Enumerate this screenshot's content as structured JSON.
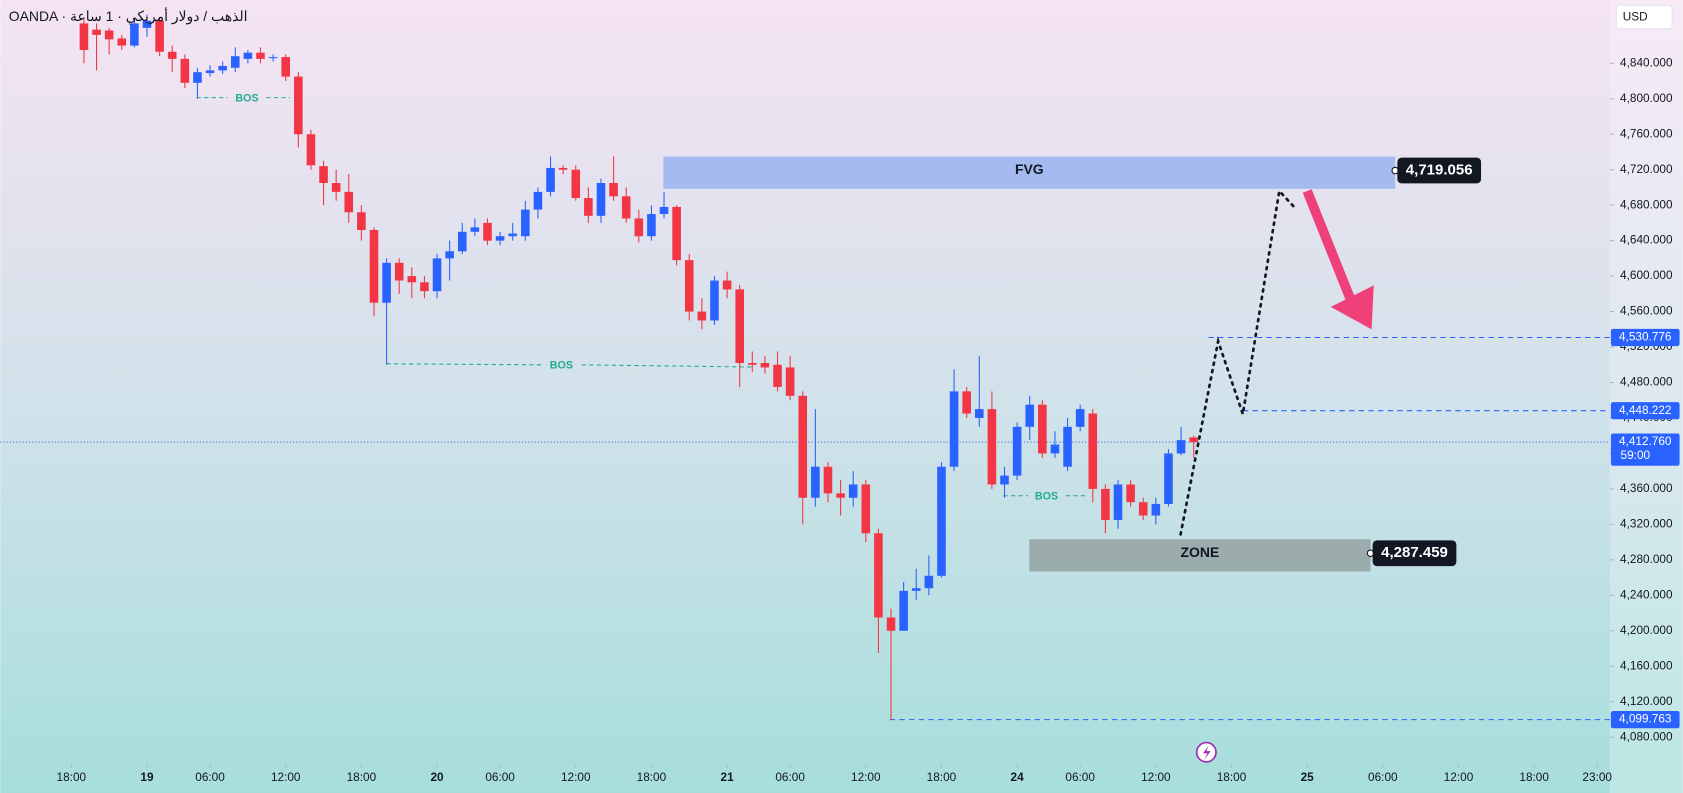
{
  "chart_data": {
    "type": "candlestick",
    "symbol": "OANDA · الذهب / دولار أمريكي · 1 ساعة",
    "currency": "USD",
    "up_color": "#2962ff",
    "down_color": "#f23645",
    "open": [
      4885,
      4878,
      4877,
      4868,
      4860,
      4880,
      4888,
      4853,
      4845,
      4818,
      4829,
      4832,
      4835,
      4845,
      4852,
      4846,
      4847,
      4825,
      4760,
      4724,
      4705,
      4695,
      4672,
      4652,
      4570,
      4615,
      4600,
      4593,
      4583,
      4620,
      4628,
      4650,
      4660,
      4640,
      4645,
      4645,
      4675,
      4695,
      4722,
      4720,
      4688,
      4668,
      4705,
      4690,
      4665,
      4645,
      4670,
      4678,
      4618,
      4560,
      4550,
      4595,
      4585,
      4502,
      4502,
      4500,
      4497,
      4465,
      4350,
      4385,
      4355,
      4350,
      4365,
      4310,
      4215,
      4200,
      4245,
      4248,
      4262,
      4385,
      4470,
      4440,
      4450,
      4365,
      4375,
      4430,
      4455,
      4400,
      4385,
      4430,
      4445,
      4360,
      4325,
      4365,
      4345,
      4330,
      4343,
      4400,
      4418
    ],
    "high": [
      4890,
      4885,
      4880,
      4872,
      4890,
      4895,
      4892,
      4860,
      4850,
      4835,
      4838,
      4842,
      4858,
      4855,
      4858,
      4850,
      4850,
      4830,
      4765,
      4730,
      4720,
      4715,
      4680,
      4655,
      4620,
      4620,
      4610,
      4600,
      4625,
      4640,
      4660,
      4665,
      4665,
      4650,
      4660,
      4685,
      4700,
      4735,
      4725,
      4725,
      4700,
      4710,
      4735,
      4700,
      4675,
      4680,
      4695,
      4680,
      4625,
      4575,
      4600,
      4605,
      4590,
      4515,
      4510,
      4515,
      4510,
      4470,
      4450,
      4390,
      4370,
      4380,
      4370,
      4315,
      4225,
      4255,
      4270,
      4285,
      4390,
      4495,
      4475,
      4510,
      4470,
      4385,
      4435,
      4465,
      4460,
      4425,
      4440,
      4455,
      4450,
      4365,
      4370,
      4370,
      4350,
      4350,
      4405,
      4430,
      4420
    ],
    "low": [
      4840,
      4832,
      4850,
      4855,
      4858,
      4870,
      4848,
      4830,
      4812,
      4800,
      4825,
      4828,
      4830,
      4840,
      4840,
      4842,
      4820,
      4745,
      4720,
      4680,
      4685,
      4660,
      4640,
      4555,
      4500,
      4580,
      4575,
      4575,
      4575,
      4595,
      4625,
      4645,
      4635,
      4635,
      4640,
      4640,
      4665,
      4690,
      4715,
      4685,
      4660,
      4660,
      4685,
      4660,
      4638,
      4640,
      4665,
      4612,
      4550,
      4540,
      4545,
      4575,
      4475,
      4492,
      4490,
      4470,
      4460,
      4320,
      4340,
      4345,
      4330,
      4340,
      4300,
      4175,
      4099.763,
      4200,
      4235,
      4240,
      4260,
      4380,
      4440,
      4430,
      4360,
      4350,
      4370,
      4415,
      4395,
      4395,
      4380,
      4425,
      4345,
      4310,
      4315,
      4340,
      4325,
      4320,
      4340,
      4398,
      4395
    ],
    "close": [
      4855,
      4872,
      4867,
      4860,
      4885,
      4888,
      4853,
      4845,
      4818,
      4830,
      4832,
      4837,
      4848,
      4852,
      4845,
      4847,
      4825,
      4760,
      4725,
      4705,
      4695,
      4672,
      4652,
      4570,
      4615,
      4595,
      4593,
      4583,
      4620,
      4628,
      4650,
      4655,
      4640,
      4645,
      4648,
      4675,
      4695,
      4722,
      4720,
      4688,
      4668,
      4705,
      4690,
      4665,
      4645,
      4670,
      4678,
      4618,
      4560,
      4550,
      4595,
      4585,
      4502,
      4500,
      4497,
      4475,
      4465,
      4350,
      4385,
      4355,
      4350,
      4365,
      4310,
      4215,
      4200,
      4245,
      4248,
      4262,
      4385,
      4470,
      4445,
      4450,
      4365,
      4375,
      4430,
      4455,
      4400,
      4410,
      4430,
      4450,
      4360,
      4325,
      4365,
      4345,
      4330,
      4343,
      4400,
      4415,
      4412.76
    ],
    "xlim": [
      -6.64,
      121
    ],
    "xticks": [
      {
        "value": -1,
        "label": "18:00"
      },
      {
        "value": 5,
        "label": "19"
      },
      {
        "value": 10,
        "label": "06:00"
      },
      {
        "value": 16,
        "label": "12:00"
      },
      {
        "value": 22,
        "label": "18:00"
      },
      {
        "value": 28,
        "label": "20"
      },
      {
        "value": 33,
        "label": "06:00"
      },
      {
        "value": 39,
        "label": "12:00"
      },
      {
        "value": 45,
        "label": "18:00"
      },
      {
        "value": 51,
        "label": "21"
      },
      {
        "value": 56,
        "label": "06:00"
      },
      {
        "value": 62,
        "label": "12:00"
      },
      {
        "value": 68,
        "label": "18:00"
      },
      {
        "value": 74,
        "label": "24"
      },
      {
        "value": 79,
        "label": "06:00"
      },
      {
        "value": 85,
        "label": "12:00"
      },
      {
        "value": 91,
        "label": "18:00"
      },
      {
        "value": 97,
        "label": "25"
      },
      {
        "value": 103,
        "label": "06:00"
      },
      {
        "value": 109,
        "label": "12:00"
      },
      {
        "value": 115,
        "label": "18:00"
      },
      {
        "value": 120,
        "label": "23:00"
      }
    ],
    "ylim": [
      4049.7,
      4911.4
    ],
    "yticks": [
      {
        "value": 4080,
        "label": "4,080.000"
      },
      {
        "value": 4120,
        "label": "4,120.000"
      },
      {
        "value": 4160,
        "label": "4,160.000"
      },
      {
        "value": 4200,
        "label": "4,200.000"
      },
      {
        "value": 4240,
        "label": "4,240.000"
      },
      {
        "value": 4280,
        "label": "4,280.000"
      },
      {
        "value": 4320,
        "label": "4,320.000"
      },
      {
        "value": 4360,
        "label": "4,360.000"
      },
      {
        "value": 4400,
        "label": "4,400.000"
      },
      {
        "value": 4440,
        "label": "4,440.000"
      },
      {
        "value": 4480,
        "label": "4,480.000"
      },
      {
        "value": 4520,
        "label": "4,520.000"
      },
      {
        "value": 4560,
        "label": "4,560.000"
      },
      {
        "value": 4600,
        "label": "4,600.000"
      },
      {
        "value": 4640,
        "label": "4,640.000"
      },
      {
        "value": 4680,
        "label": "4,680.000"
      },
      {
        "value": 4720,
        "label": "4,720.000"
      },
      {
        "value": 4760,
        "label": "4,760.000"
      },
      {
        "value": 4800,
        "label": "4,800.000"
      },
      {
        "value": 4840,
        "label": "4,840.000"
      }
    ],
    "fvg": {
      "text": "FVG",
      "price": {
        "value": 4719.056,
        "label": "4,719.056"
      }
    },
    "zone": {
      "text": "ZONE",
      "price": {
        "value": 4287.459,
        "label": "4,287.459"
      }
    },
    "levels": [
      {
        "value": 4530.776,
        "label": "4,530.776"
      },
      {
        "value": 4448.222,
        "label": "4,448.222"
      },
      {
        "value": 4099.763,
        "label": "4,099.763"
      }
    ],
    "last_price": {
      "value": 4412.76,
      "label": "4,412.760"
    },
    "countdown": "59:00",
    "bos_labels": [
      "BOS",
      "BOS",
      "BOS"
    ]
  }
}
